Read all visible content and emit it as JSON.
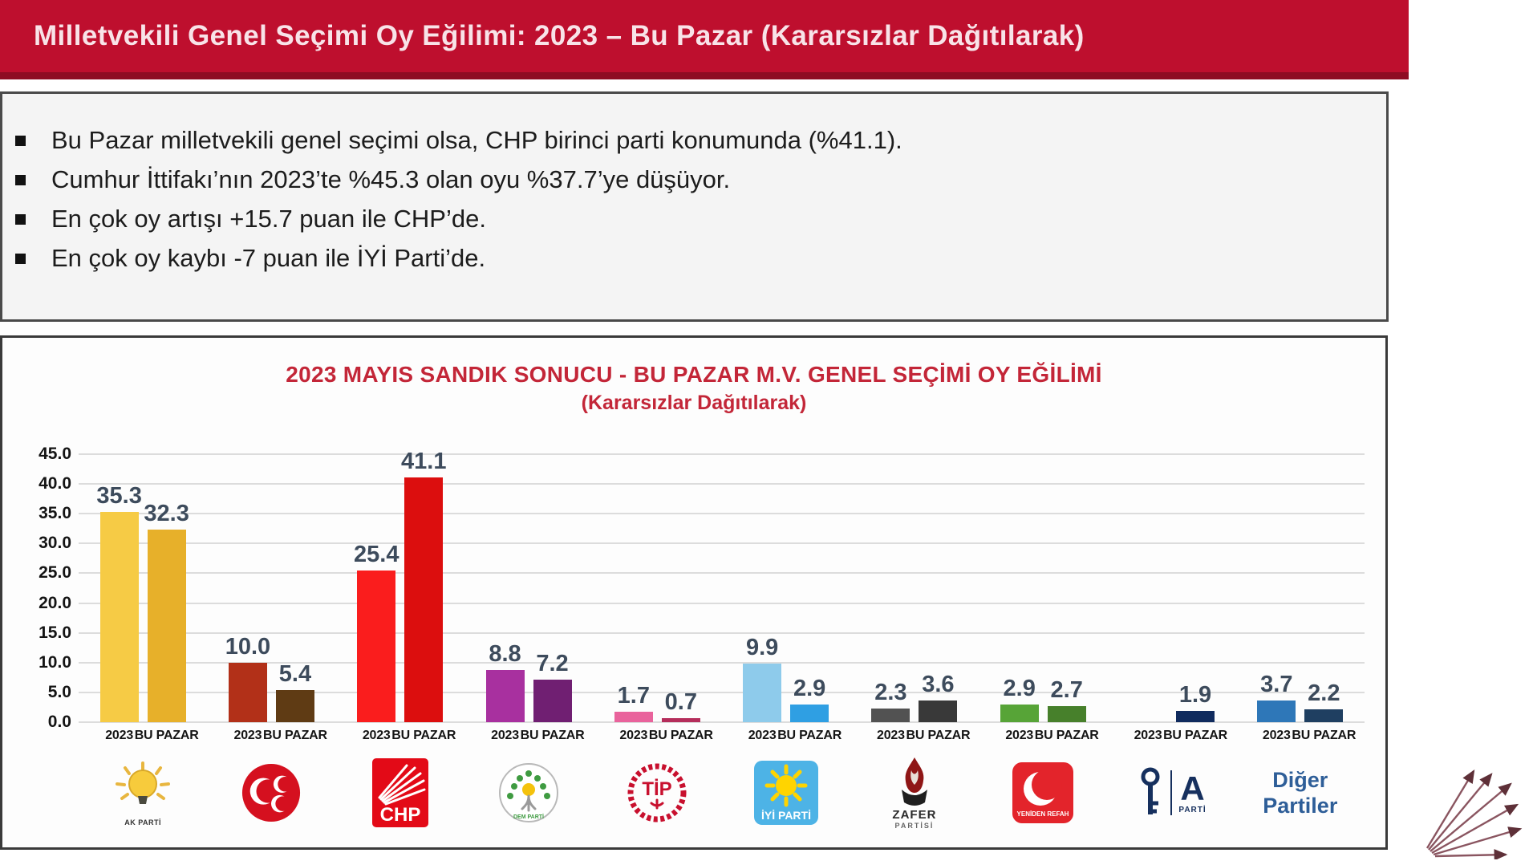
{
  "header": {
    "title": "Milletvekili Genel Seçimi Oy Eğilimi: 2023 – Bu Pazar (Kararsızlar Dağıtılarak)"
  },
  "bullets": [
    "Bu Pazar milletvekili genel seçimi olsa, CHP birinci parti konumunda (%41.1).",
    "Cumhur İttifakı’nın 2023’te %45.3 olan oyu %37.7’ye düşüyor.",
    "En çok oy artışı +15.7 puan ile CHP’de.",
    "En çok oy kaybı -7 puan ile İYİ Parti’de."
  ],
  "chart_data": {
    "type": "bar",
    "title": "2023 MAYIS SANDIK SONUCU - BU PAZAR M.V. GENEL SEÇİMİ OY EĞİLİMİ",
    "subtitle": "(Kararsızlar Dağıtılarak)",
    "xlabel": "",
    "ylabel": "",
    "ylim": [
      0,
      45
    ],
    "yticks": [
      "45.0",
      "40.0",
      "35.0",
      "30.0",
      "25.0",
      "20.0",
      "15.0",
      "10.0",
      "5.0",
      "0.0"
    ],
    "grid": true,
    "legend_position": "none",
    "bar_categories": [
      "2023",
      "BU PAZAR"
    ],
    "groups": [
      {
        "party": "AK PARTİ",
        "logo": "akp",
        "values": [
          35.3,
          32.3
        ],
        "colors": [
          "#F6CB45",
          "#E7B02A"
        ]
      },
      {
        "party": "MHP",
        "logo": "mhp",
        "values": [
          10.0,
          5.4
        ],
        "colors": [
          "#B23018",
          "#5F3B14"
        ]
      },
      {
        "party": "CHP",
        "logo": "chp",
        "values": [
          25.4,
          41.1
        ],
        "colors": [
          "#FA1D1D",
          "#DC0E0E"
        ]
      },
      {
        "party": "DEM PARTİ",
        "logo": "dem",
        "values": [
          8.8,
          7.2
        ],
        "colors": [
          "#A8309F",
          "#701F72"
        ]
      },
      {
        "party": "TİP",
        "logo": "tip",
        "values": [
          1.7,
          0.7
        ],
        "colors": [
          "#E9639C",
          "#B52D5B"
        ]
      },
      {
        "party": "İYİ PARTİ",
        "logo": "iyi",
        "values": [
          9.9,
          2.9
        ],
        "colors": [
          "#8ECBEB",
          "#2F9FE3"
        ]
      },
      {
        "party": "ZAFER PARTİSİ",
        "logo": "zafer",
        "values": [
          2.3,
          3.6
        ],
        "colors": [
          "#525252",
          "#393939"
        ]
      },
      {
        "party": "YENİDEN REFAH",
        "logo": "yrp",
        "values": [
          2.9,
          2.7
        ],
        "colors": [
          "#57A437",
          "#47802B"
        ]
      },
      {
        "party": "ANAHTAR PARTİ",
        "logo": "anahtar",
        "values": [
          null,
          1.9
        ],
        "colors": [
          "#102B5E",
          "#102B5E"
        ]
      },
      {
        "party": "DİĞER PARTİLER",
        "logo": "diger",
        "values": [
          3.7,
          2.2
        ],
        "colors": [
          "#2E77B8",
          "#1F3F61"
        ]
      }
    ]
  },
  "logos": {
    "akp_caption": "AK PARTİ",
    "chp_text": "CHP",
    "dem_caption": "DEM PARTİ",
    "tip_text": "TİP",
    "iyi_text": "İYİ PARTİ",
    "zafer_line1": "ZAFER",
    "zafer_line2": "PARTİSİ",
    "yrp_caption": "YENİDEN REFAH",
    "anahtar_letter": "A",
    "anahtar_caption": "PARTİ",
    "diger_line1": "Diğer",
    "diger_line2": "Partiler"
  }
}
